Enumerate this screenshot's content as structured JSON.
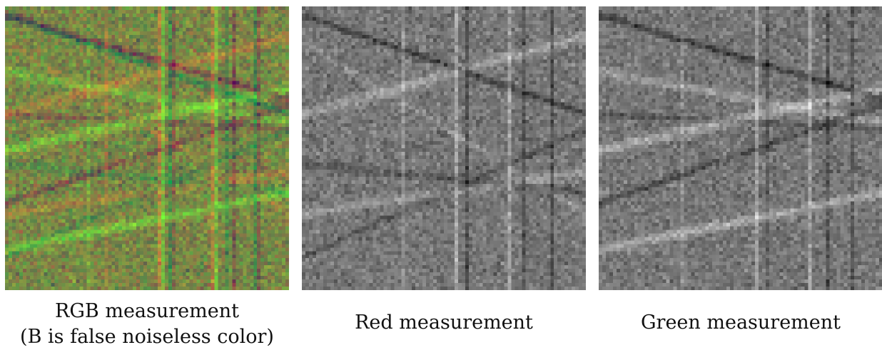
{
  "figure": {
    "panels": [
      {
        "id": "rgb",
        "mode": "rgb",
        "caption_lines": [
          "RGB measurement",
          "(B is false noiseless color)"
        ]
      },
      {
        "id": "red",
        "mode": "gray",
        "caption_lines": [
          "Red measurement"
        ]
      },
      {
        "id": "green",
        "mode": "gray",
        "caption_lines": [
          "Green measurement"
        ]
      }
    ]
  }
}
